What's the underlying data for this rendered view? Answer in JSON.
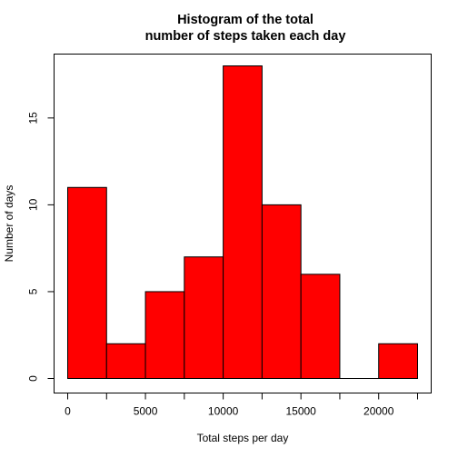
{
  "chart_data": {
    "type": "bar",
    "subtype": "histogram",
    "title_lines": [
      "Histogram of the total",
      "number of steps taken each day"
    ],
    "xlabel": "Total steps per day",
    "ylabel": "Number of days",
    "bin_width": 2500,
    "bins": [
      {
        "start": 0,
        "end": 2500,
        "count": 11
      },
      {
        "start": 2500,
        "end": 5000,
        "count": 2
      },
      {
        "start": 5000,
        "end": 7500,
        "count": 5
      },
      {
        "start": 7500,
        "end": 10000,
        "count": 7
      },
      {
        "start": 10000,
        "end": 12500,
        "count": 18
      },
      {
        "start": 12500,
        "end": 15000,
        "count": 10
      },
      {
        "start": 15000,
        "end": 17500,
        "count": 6
      },
      {
        "start": 17500,
        "end": 20000,
        "count": 0
      },
      {
        "start": 20000,
        "end": 22500,
        "count": 2
      }
    ],
    "xlim": [
      0,
      22500
    ],
    "ylim": [
      0,
      18
    ],
    "x_ticks": [
      0,
      2500,
      5000,
      7500,
      10000,
      12500,
      15000,
      17500,
      20000,
      22500
    ],
    "x_tick_labels": [
      "0",
      "",
      "5000",
      "",
      "10000",
      "",
      "15000",
      "",
      "20000",
      ""
    ],
    "y_ticks": [
      0,
      5,
      10,
      15
    ],
    "y_tick_labels": [
      "0",
      "5",
      "10",
      "15"
    ],
    "bar_color": "#ff0000",
    "bar_border_color": "#000000",
    "grid": false,
    "legend": "none"
  }
}
